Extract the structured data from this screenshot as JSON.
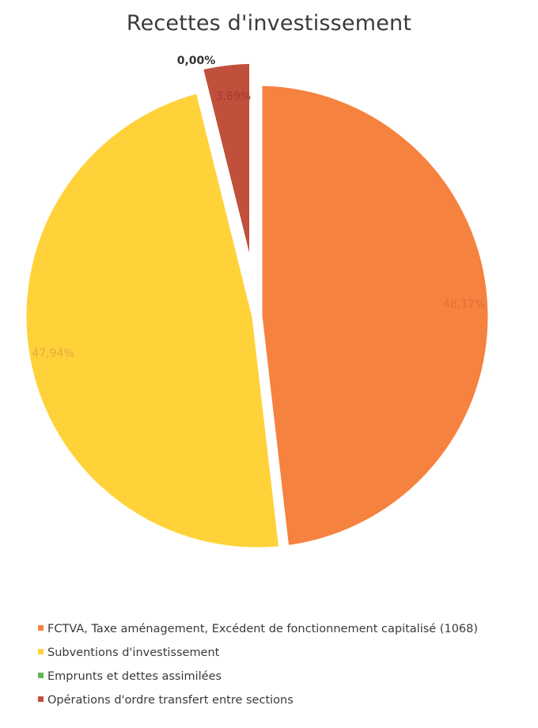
{
  "chart_data": {
    "type": "pie",
    "title": "Recettes d'investissement",
    "slices": [
      {
        "label": "FCTVA, Taxe aménagement, Excédent de fonctionnement capitalisé (1068)",
        "value": 48.17,
        "value_label": "48,17%",
        "color": "#f6823f",
        "label_color": "#e0703a"
      },
      {
        "label": "Subventions d'investissement",
        "value": 47.94,
        "value_label": "47,94%",
        "color": "#ffd23a",
        "label_color": "#e8a840"
      },
      {
        "label": "Emprunts et dettes assimilées",
        "value": 0.0,
        "value_label": "0,00%",
        "color": "#5cb85c",
        "label_color": "#333333"
      },
      {
        "label": "Opérations d'ordre transfert entre sections",
        "value": 3.89,
        "value_label": "3,89%",
        "color": "#c0503c",
        "label_color": "#a03c30"
      }
    ],
    "legend": {
      "position": "bottom"
    }
  }
}
